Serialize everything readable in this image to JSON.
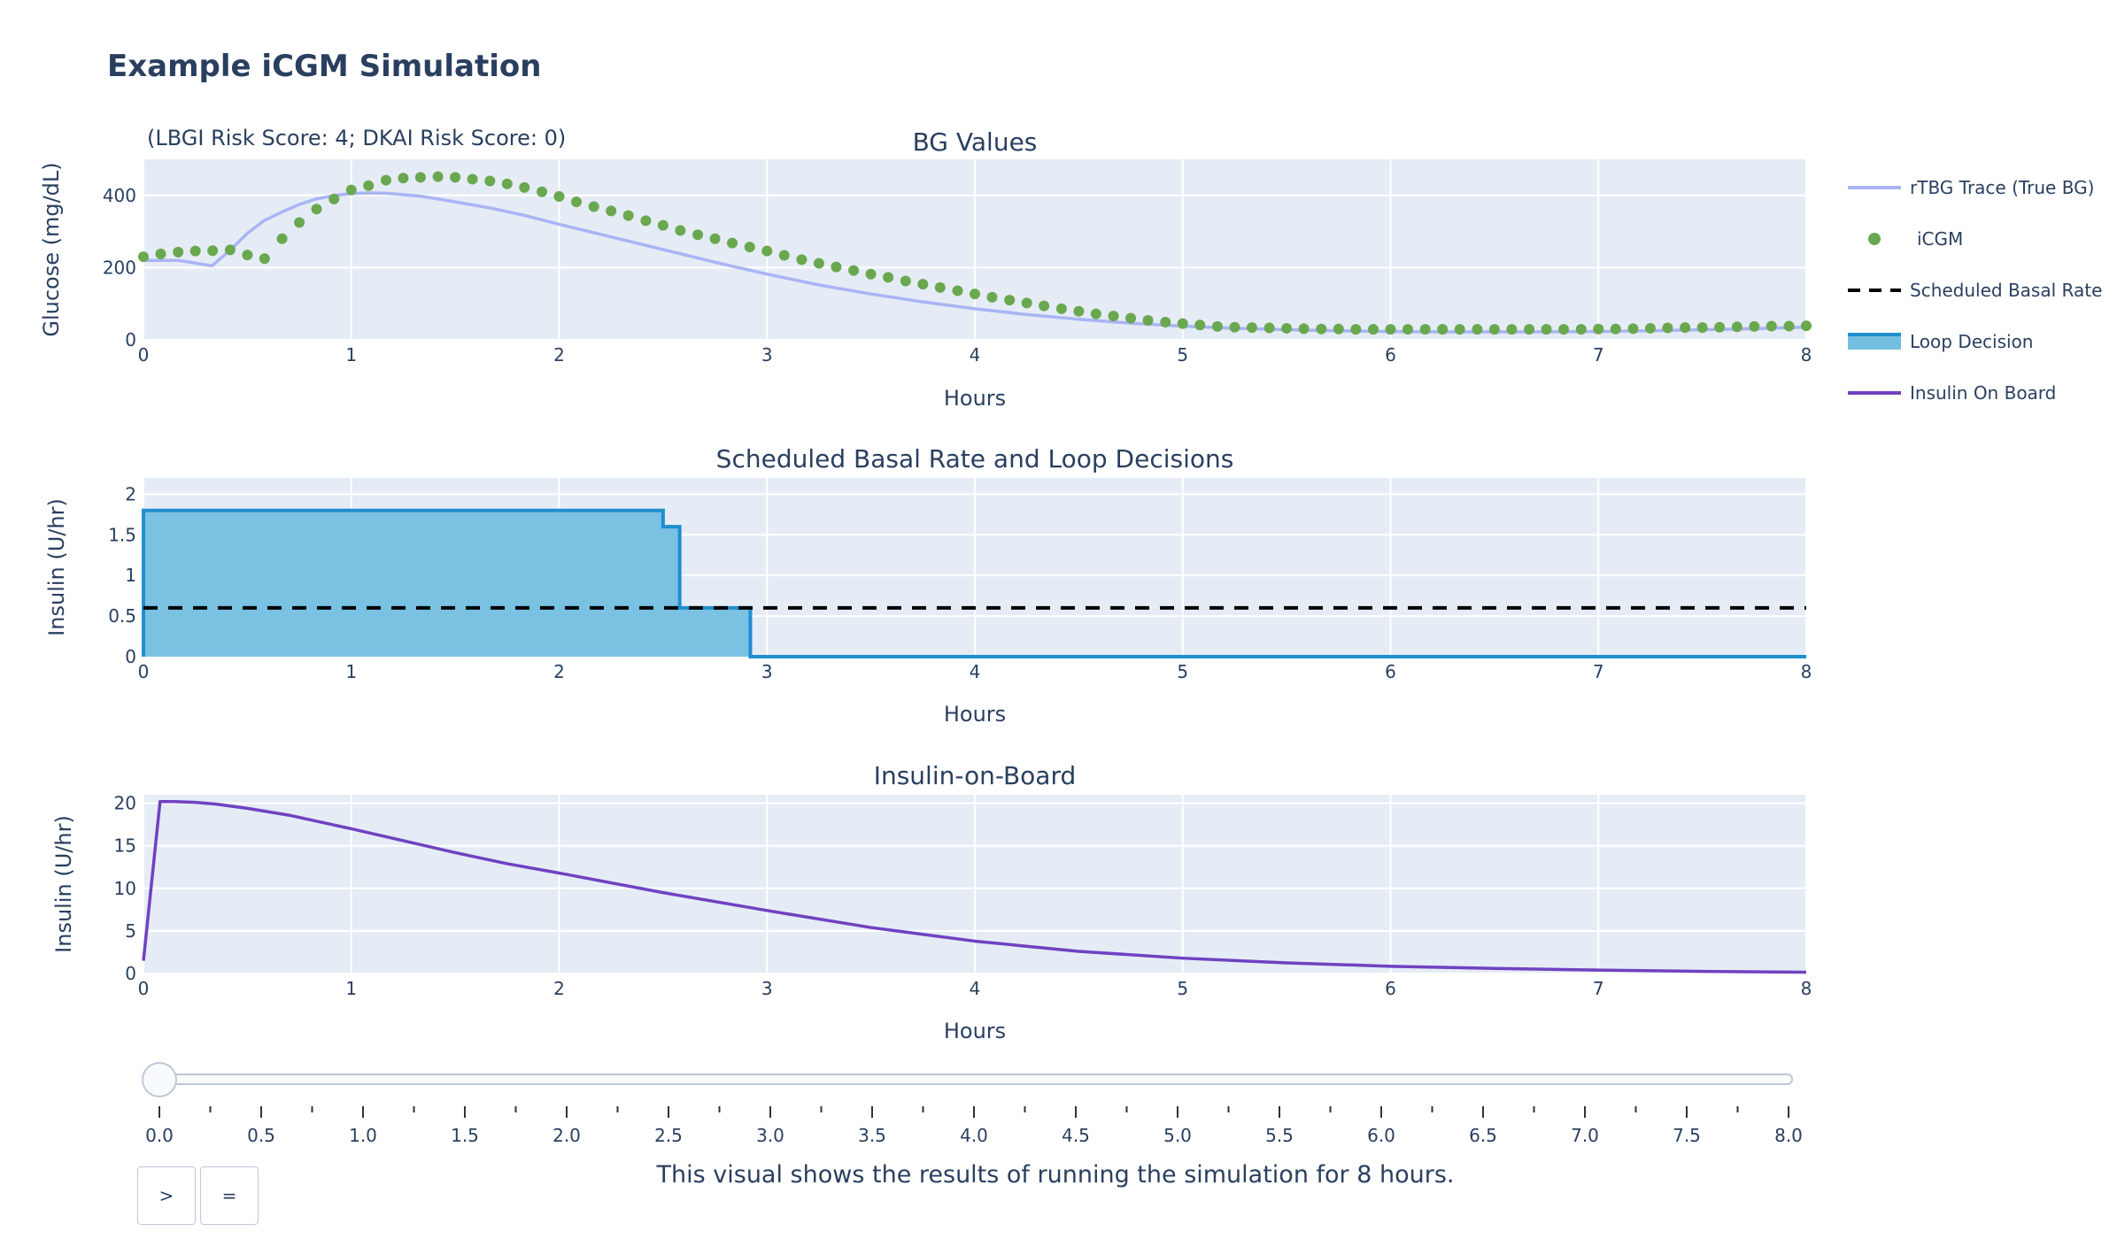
{
  "title": "Example iCGM Simulation",
  "risk_annotation": "(LBGI Risk Score: 4; DKAI Risk Score: 0)",
  "caption": "This visual shows the results of running the simulation for 8 hours.",
  "buttons": {
    "play": ">",
    "pause": "="
  },
  "slider": {
    "value": 0.0,
    "ticks": [
      "0.0",
      "0.5",
      "1.0",
      "1.5",
      "2.0",
      "2.5",
      "3.0",
      "3.5",
      "4.0",
      "4.5",
      "5.0",
      "5.5",
      "6.0",
      "6.5",
      "7.0",
      "7.5",
      "8.0"
    ]
  },
  "colors": {
    "rtbg": "#aab4f5",
    "icgm": "#6aa84f",
    "basal": "#000000",
    "loop_line": "#1f8fcf",
    "loop_fill": "#74bfe0",
    "iob": "#6f42c1",
    "plot_bg": "#e5ecf6"
  },
  "legend": [
    {
      "name": "rTBG Trace (True BG)",
      "symbol": "line",
      "color": "#aab4f5"
    },
    {
      "name": "iCGM",
      "symbol": "dot",
      "color": "#6aa84f"
    },
    {
      "name": "Scheduled Basal Rate",
      "symbol": "dash",
      "color": "#000000"
    },
    {
      "name": "Loop Decision",
      "symbol": "fill",
      "color": "#1f8fcf"
    },
    {
      "name": "Insulin On Board",
      "symbol": "line",
      "color": "#6f42c1"
    }
  ],
  "chart_data": [
    {
      "type": "line",
      "title": "BG Values",
      "xlabel": "Hours",
      "ylabel": "Glucose (mg/dL)",
      "xlim": [
        0,
        8
      ],
      "ylim": [
        0,
        500
      ],
      "xticks": [
        "0",
        "1",
        "2",
        "3",
        "4",
        "5",
        "6",
        "7",
        "8"
      ],
      "yticks": [
        {
          "v": 0,
          "label": "0"
        },
        {
          "v": 200,
          "label": "200"
        },
        {
          "v": 400,
          "label": "400"
        }
      ],
      "series": [
        {
          "name": "rTBG Trace (True BG)",
          "x": [
            0,
            0.17,
            0.33,
            0.42,
            0.5,
            0.58,
            0.67,
            0.75,
            0.83,
            0.92,
            1.0,
            1.08,
            1.17,
            1.25,
            1.33,
            1.42,
            1.5,
            1.67,
            1.83,
            2.0,
            2.25,
            2.5,
            2.75,
            3.0,
            3.25,
            3.5,
            3.75,
            4.0,
            4.25,
            4.5,
            4.75,
            5.0,
            5.25,
            5.5,
            5.75,
            6.0,
            6.25,
            6.5,
            6.75,
            7.0,
            7.25,
            7.5,
            7.75,
            8.0
          ],
          "y": [
            220,
            220,
            205,
            250,
            295,
            330,
            355,
            375,
            390,
            400,
            405,
            407,
            406,
            402,
            398,
            390,
            382,
            365,
            345,
            320,
            285,
            250,
            215,
            182,
            152,
            127,
            105,
            86,
            70,
            57,
            46,
            38,
            32,
            28,
            25,
            23,
            22,
            22,
            22,
            23,
            25,
            28,
            31,
            35
          ]
        },
        {
          "name": "iCGM",
          "x": [
            0,
            0.083,
            0.167,
            0.25,
            0.333,
            0.417,
            0.5,
            0.583,
            0.667,
            0.75,
            0.833,
            0.917,
            1.0,
            1.083,
            1.167,
            1.25,
            1.333,
            1.417,
            1.5,
            1.583,
            1.667,
            1.75,
            1.833,
            1.917,
            2.0,
            2.083,
            2.167,
            2.25,
            2.333,
            2.417,
            2.5,
            2.583,
            2.667,
            2.75,
            2.833,
            2.917,
            3.0,
            3.083,
            3.167,
            3.25,
            3.333,
            3.417,
            3.5,
            3.583,
            3.667,
            3.75,
            3.833,
            3.917,
            4.0,
            4.083,
            4.167,
            4.25,
            4.333,
            4.417,
            4.5,
            4.583,
            4.667,
            4.75,
            4.833,
            4.917,
            5.0,
            5.083,
            5.167,
            5.25,
            5.333,
            5.417,
            5.5,
            5.583,
            5.667,
            5.75,
            5.833,
            5.917,
            6.0,
            6.083,
            6.167,
            6.25,
            6.333,
            6.417,
            6.5,
            6.583,
            6.667,
            6.75,
            6.833,
            6.917,
            7.0,
            7.083,
            7.167,
            7.25,
            7.333,
            7.417,
            7.5,
            7.583,
            7.667,
            7.75,
            7.833,
            7.917,
            8.0
          ],
          "y": [
            230,
            238,
            243,
            246,
            247,
            249,
            235,
            225,
            280,
            325,
            362,
            390,
            415,
            427,
            442,
            448,
            450,
            452,
            450,
            445,
            440,
            432,
            422,
            410,
            397,
            382,
            369,
            357,
            344,
            330,
            317,
            303,
            291,
            280,
            268,
            257,
            246,
            234,
            222,
            212,
            202,
            192,
            182,
            173,
            163,
            154,
            145,
            136,
            127,
            118,
            110,
            102,
            94,
            86,
            79,
            72,
            66,
            60,
            54,
            49,
            45,
            41,
            37,
            35,
            34,
            33,
            32,
            31,
            30,
            30,
            29,
            29,
            29,
            29,
            29,
            29,
            29,
            29,
            29,
            29,
            29,
            29,
            29,
            29,
            30,
            30,
            31,
            32,
            33,
            34,
            34,
            35,
            36,
            37,
            38,
            38,
            39
          ]
        }
      ]
    },
    {
      "type": "area",
      "title": "Scheduled Basal Rate and Loop Decisions",
      "xlabel": "Hours",
      "ylabel": "Insulin (U/hr)",
      "xlim": [
        0,
        8
      ],
      "ylim": [
        0,
        2.2
      ],
      "xticks": [
        "0",
        "1",
        "2",
        "3",
        "4",
        "5",
        "6",
        "7",
        "8"
      ],
      "yticks": [
        {
          "v": 0,
          "label": "0"
        },
        {
          "v": 0.5,
          "label": "0.5"
        },
        {
          "v": 1,
          "label": "1"
        },
        {
          "v": 1.5,
          "label": "1.5"
        },
        {
          "v": 2,
          "label": "2"
        }
      ],
      "series": [
        {
          "name": "Loop Decision",
          "shape": "step",
          "x": [
            0,
            2.5,
            2.58,
            2.92,
            8.0
          ],
          "y": [
            1.8,
            1.6,
            0.6,
            0,
            0
          ]
        },
        {
          "name": "Scheduled Basal Rate",
          "shape": "dash",
          "x": [
            0,
            8
          ],
          "y": [
            0.6,
            0.6
          ]
        }
      ]
    },
    {
      "type": "line",
      "title": "Insulin-on-Board",
      "xlabel": "Hours",
      "ylabel": "Insulin (U/hr)",
      "xlim": [
        0,
        8
      ],
      "ylim": [
        0,
        21
      ],
      "xticks": [
        "0",
        "1",
        "2",
        "3",
        "4",
        "5",
        "6",
        "7",
        "8"
      ],
      "yticks": [
        {
          "v": 0,
          "label": "0"
        },
        {
          "v": 5,
          "label": "5"
        },
        {
          "v": 10,
          "label": "10"
        },
        {
          "v": 15,
          "label": "15"
        },
        {
          "v": 20,
          "label": "20"
        }
      ],
      "series": [
        {
          "name": "Insulin On Board",
          "x": [
            0,
            0.08,
            0.15,
            0.25,
            0.35,
            0.5,
            0.7,
            1.0,
            1.25,
            1.5,
            1.75,
            2.0,
            2.5,
            3.0,
            3.5,
            4.0,
            4.5,
            5.0,
            5.5,
            6.0,
            6.5,
            7.0,
            7.5,
            8.0
          ],
          "y": [
            1.5,
            20.2,
            20.2,
            20.1,
            19.9,
            19.4,
            18.6,
            17.0,
            15.6,
            14.2,
            12.9,
            11.8,
            9.5,
            7.4,
            5.4,
            3.8,
            2.6,
            1.8,
            1.25,
            0.85,
            0.6,
            0.4,
            0.25,
            0.15
          ]
        }
      ]
    }
  ]
}
